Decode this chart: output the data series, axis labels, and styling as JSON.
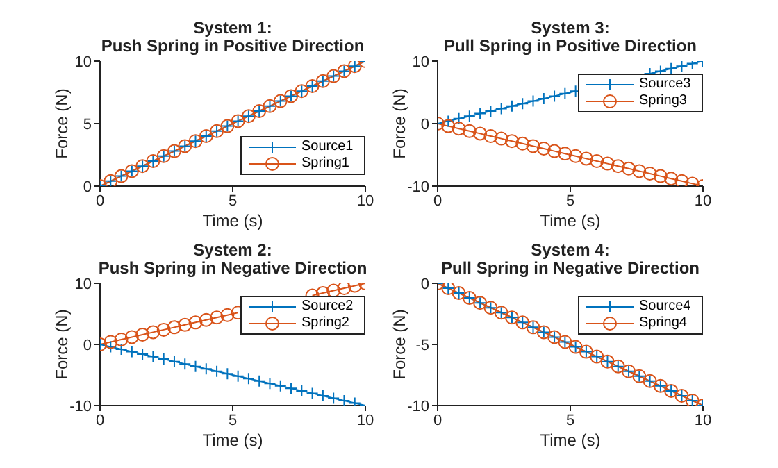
{
  "chart_data": [
    {
      "type": "line",
      "title": "System 1:",
      "subtitle": "Push Spring in Positive Direction",
      "xlabel": "Time (s)",
      "ylabel": "Force (N)",
      "x": [
        0,
        0.4,
        0.8,
        1.2,
        1.6,
        2,
        2.4,
        2.8,
        3.2,
        3.6,
        4,
        4.4,
        4.8,
        5.2,
        5.6,
        6,
        6.4,
        6.8,
        7.2,
        7.6,
        8,
        8.4,
        8.8,
        9.2,
        9.6,
        10
      ],
      "xlim": [
        0,
        10
      ],
      "xticks": [
        0,
        5,
        10
      ],
      "ylim": [
        0,
        10
      ],
      "yticks": [
        0,
        5,
        10
      ],
      "legend": "bottom right",
      "series": [
        {
          "name": "Source1",
          "color": "#0072bd",
          "marker": "cross",
          "values": [
            0,
            0.4,
            0.8,
            1.2,
            1.6,
            2,
            2.4,
            2.8,
            3.2,
            3.6,
            4,
            4.4,
            4.8,
            5.2,
            5.6,
            6,
            6.4,
            6.8,
            7.2,
            7.6,
            8,
            8.4,
            8.8,
            9.2,
            9.6,
            10
          ]
        },
        {
          "name": "Spring1",
          "color": "#d95319",
          "marker": "circle",
          "values": [
            0,
            0.4,
            0.8,
            1.2,
            1.6,
            2,
            2.4,
            2.8,
            3.2,
            3.6,
            4,
            4.4,
            4.8,
            5.2,
            5.6,
            6,
            6.4,
            6.8,
            7.2,
            7.6,
            8,
            8.4,
            8.8,
            9.2,
            9.6,
            10
          ]
        }
      ]
    },
    {
      "type": "line",
      "title": "System 3:",
      "subtitle": "Pull Spring in Positive Direction",
      "xlabel": "Time (s)",
      "ylabel": "Force (N)",
      "x": [
        0,
        0.4,
        0.8,
        1.2,
        1.6,
        2,
        2.4,
        2.8,
        3.2,
        3.6,
        4,
        4.4,
        4.8,
        5.2,
        5.6,
        6,
        6.4,
        6.8,
        7.2,
        7.6,
        8,
        8.4,
        8.8,
        9.2,
        9.6,
        10
      ],
      "xlim": [
        0,
        10
      ],
      "xticks": [
        0,
        5,
        10
      ],
      "ylim": [
        -10,
        10
      ],
      "yticks": [
        -10,
        0,
        10
      ],
      "legend": "top right",
      "series": [
        {
          "name": "Source3",
          "color": "#0072bd",
          "marker": "cross",
          "values": [
            0,
            0.4,
            0.8,
            1.2,
            1.6,
            2,
            2.4,
            2.8,
            3.2,
            3.6,
            4,
            4.4,
            4.8,
            5.2,
            null,
            null,
            null,
            null,
            null,
            null,
            8,
            8.4,
            8.8,
            9.2,
            9.6,
            10
          ]
        },
        {
          "name": "Spring3",
          "color": "#d95319",
          "marker": "circle",
          "values": [
            0,
            -0.4,
            -0.8,
            -1.2,
            -1.6,
            -2,
            -2.4,
            -2.8,
            -3.2,
            -3.6,
            -4,
            -4.4,
            -4.8,
            -5.2,
            -5.6,
            -6,
            -6.4,
            -6.8,
            -7.2,
            -7.6,
            -8,
            -8.4,
            -8.8,
            -9.2,
            -9.6,
            -10
          ]
        }
      ]
    },
    {
      "type": "line",
      "title": "System 2:",
      "subtitle": "Push Spring in Negative Direction",
      "xlabel": "Time (s)",
      "ylabel": "Force (N)",
      "x": [
        0,
        0.4,
        0.8,
        1.2,
        1.6,
        2,
        2.4,
        2.8,
        3.2,
        3.6,
        4,
        4.4,
        4.8,
        5.2,
        5.6,
        6,
        6.4,
        6.8,
        7.2,
        7.6,
        8,
        8.4,
        8.8,
        9.2,
        9.6,
        10
      ],
      "xlim": [
        0,
        10
      ],
      "xticks": [
        0,
        5,
        10
      ],
      "ylim": [
        -10,
        10
      ],
      "yticks": [
        -10,
        0,
        10
      ],
      "legend": "top right",
      "series": [
        {
          "name": "Source2",
          "color": "#0072bd",
          "marker": "cross",
          "values": [
            0,
            -0.4,
            -0.8,
            -1.2,
            -1.6,
            -2,
            -2.4,
            -2.8,
            -3.2,
            -3.6,
            -4,
            -4.4,
            -4.8,
            -5.2,
            -5.6,
            -6,
            -6.4,
            -6.8,
            -7.2,
            -7.6,
            -8,
            -8.4,
            -8.8,
            -9.2,
            -9.6,
            -10
          ]
        },
        {
          "name": "Spring2",
          "color": "#d95319",
          "marker": "circle",
          "values": [
            0,
            0.4,
            0.8,
            1.2,
            1.6,
            2,
            2.4,
            2.8,
            3.2,
            3.6,
            4,
            4.4,
            4.8,
            5.2,
            null,
            null,
            null,
            null,
            null,
            null,
            8,
            8.4,
            8.8,
            9.2,
            9.6,
            10
          ]
        }
      ]
    },
    {
      "type": "line",
      "title": "System 4:",
      "subtitle": "Pull Spring in Negative Direction",
      "xlabel": "Time (s)",
      "ylabel": "Force (N)",
      "x": [
        0,
        0.4,
        0.8,
        1.2,
        1.6,
        2,
        2.4,
        2.8,
        3.2,
        3.6,
        4,
        4.4,
        4.8,
        5.2,
        5.6,
        6,
        6.4,
        6.8,
        7.2,
        7.6,
        8,
        8.4,
        8.8,
        9.2,
        9.6,
        10
      ],
      "xlim": [
        0,
        10
      ],
      "xticks": [
        0,
        5,
        10
      ],
      "ylim": [
        -10,
        0
      ],
      "yticks": [
        -10,
        -5,
        0
      ],
      "legend": "top right",
      "series": [
        {
          "name": "Source4",
          "color": "#0072bd",
          "marker": "cross",
          "values": [
            0,
            -0.4,
            -0.8,
            -1.2,
            -1.6,
            -2,
            -2.4,
            -2.8,
            -3.2,
            -3.6,
            -4,
            -4.4,
            -4.8,
            -5.2,
            -5.6,
            -6,
            -6.4,
            -6.8,
            -7.2,
            -7.6,
            -8,
            -8.4,
            -8.8,
            -9.2,
            -9.6,
            -10
          ]
        },
        {
          "name": "Spring4",
          "color": "#d95319",
          "marker": "circle",
          "values": [
            0,
            -0.4,
            -0.8,
            -1.2,
            -1.6,
            -2,
            -2.4,
            -2.8,
            -3.2,
            -3.6,
            -4,
            -4.4,
            -4.8,
            -5.2,
            -5.6,
            -6,
            -6.4,
            -6.8,
            -7.2,
            -7.6,
            -8,
            -8.4,
            -8.8,
            -9.2,
            -9.6,
            -10
          ]
        }
      ]
    }
  ]
}
